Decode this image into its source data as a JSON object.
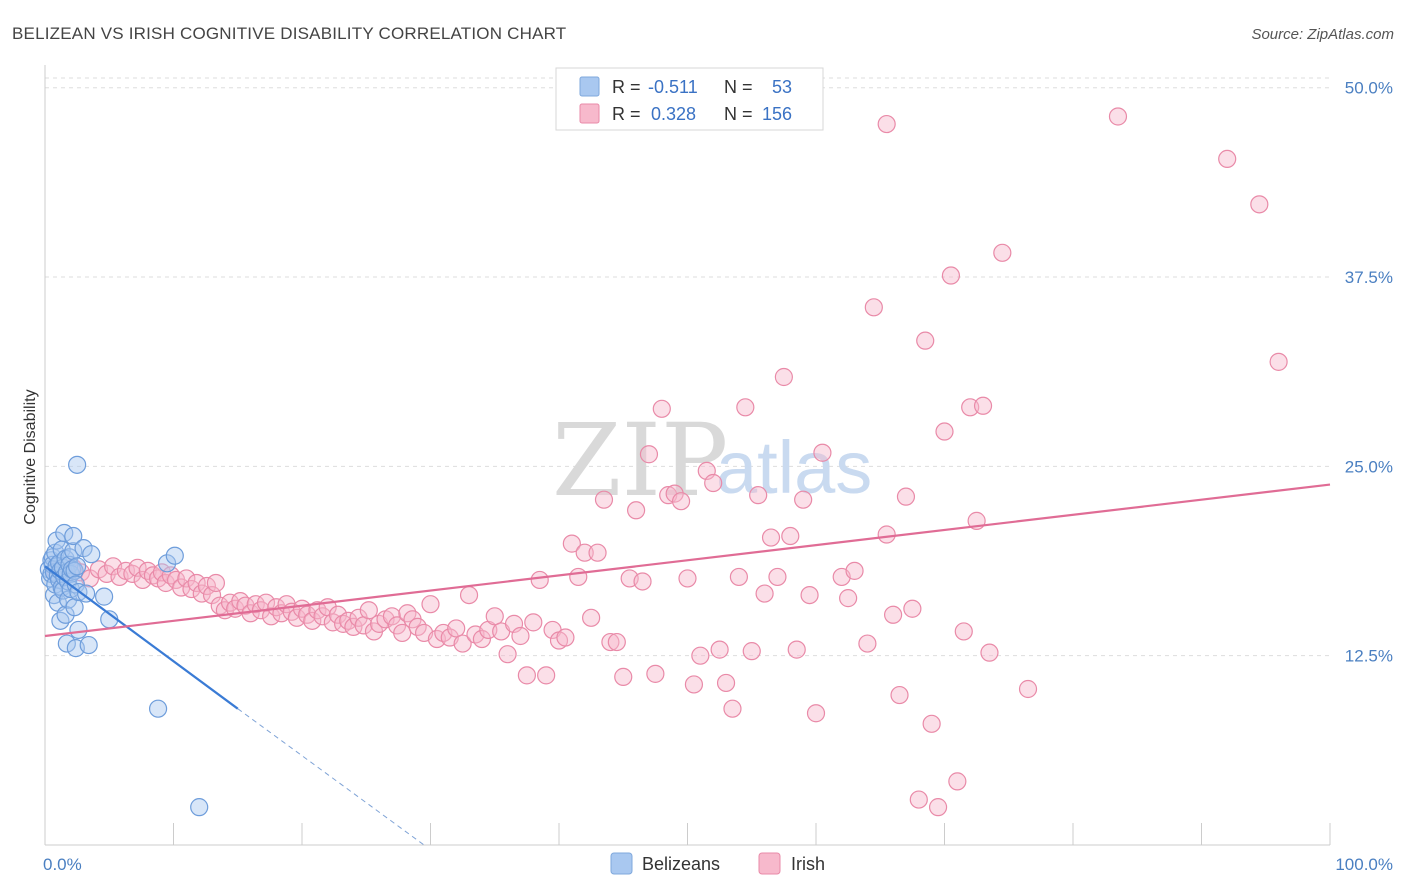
{
  "header": {
    "title": "BELIZEAN VS IRISH COGNITIVE DISABILITY CORRELATION CHART",
    "source": "Source: ZipAtlas.com"
  },
  "watermark": {
    "part1": "ZIP",
    "part2": "atlas"
  },
  "legend": {
    "rows": [
      {
        "r_label": "R =",
        "r_value": "-0.511",
        "n_label": "N =",
        "n_value": "53",
        "color": "#a9c8f0",
        "stroke": "#7fa8dc"
      },
      {
        "r_label": "R =",
        "r_value": "0.328",
        "n_label": "N =",
        "n_value": "156",
        "color": "#f7b9cc",
        "stroke": "#e98aa8"
      }
    ]
  },
  "bottom_legend": [
    {
      "label": "Belizeans",
      "color": "#a9c8f0",
      "stroke": "#7fa8dc"
    },
    {
      "label": "Irish",
      "color": "#f7b9cc",
      "stroke": "#e98aa8"
    }
  ],
  "chart_data": {
    "type": "scatter",
    "title": "BELIZEAN VS IRISH COGNITIVE DISABILITY CORRELATION CHART",
    "xlabel": "",
    "ylabel": "Cognitive Disability",
    "xlim": [
      0,
      100
    ],
    "ylim": [
      0,
      51.5
    ],
    "x_tick_labels": [
      {
        "value": 0,
        "label": "0.0%"
      },
      {
        "value": 100,
        "label": "100.0%"
      }
    ],
    "y_tick_labels": [
      {
        "value": 12.5,
        "label": "12.5%"
      },
      {
        "value": 25,
        "label": "25.0%"
      },
      {
        "value": 37.5,
        "label": "37.5%"
      },
      {
        "value": 50,
        "label": "50.0%"
      }
    ],
    "grid": true,
    "colors": {
      "blue": "#3a7bd5",
      "pink": "#e06c95",
      "blue_fill": "#a9c8f0",
      "pink_fill": "#f7b9cc"
    },
    "series": [
      {
        "name": "Belizeans",
        "color": "#a9c8f0",
        "points": [
          [
            0.3,
            18.2
          ],
          [
            0.4,
            17.6
          ],
          [
            0.5,
            18.8
          ],
          [
            0.5,
            17.9
          ],
          [
            0.6,
            19.0
          ],
          [
            0.6,
            18.5
          ],
          [
            0.7,
            16.5
          ],
          [
            0.7,
            18.0
          ],
          [
            0.8,
            19.3
          ],
          [
            0.8,
            17.2
          ],
          [
            0.9,
            18.4
          ],
          [
            0.9,
            20.1
          ],
          [
            1.0,
            17.8
          ],
          [
            1.0,
            16.0
          ],
          [
            1.1,
            18.6
          ],
          [
            1.1,
            17.5
          ],
          [
            1.2,
            14.8
          ],
          [
            1.2,
            18.1
          ],
          [
            1.3,
            17.0
          ],
          [
            1.3,
            19.5
          ],
          [
            1.4,
            18.3
          ],
          [
            1.4,
            16.8
          ],
          [
            1.5,
            20.6
          ],
          [
            1.5,
            17.7
          ],
          [
            1.6,
            18.9
          ],
          [
            1.6,
            15.2
          ],
          [
            1.7,
            13.3
          ],
          [
            1.7,
            18.0
          ],
          [
            1.8,
            17.4
          ],
          [
            1.8,
            16.2
          ],
          [
            1.9,
            19.0
          ],
          [
            1.9,
            18.5
          ],
          [
            2.0,
            17.9
          ],
          [
            2.0,
            16.9
          ],
          [
            2.1,
            18.2
          ],
          [
            2.2,
            19.4
          ],
          [
            2.2,
            20.4
          ],
          [
            2.3,
            15.7
          ],
          [
            2.3,
            18.1
          ],
          [
            2.4,
            17.2
          ],
          [
            2.4,
            13.0
          ],
          [
            2.5,
            25.1
          ],
          [
            2.5,
            18.4
          ],
          [
            2.6,
            16.7
          ],
          [
            2.6,
            14.2
          ],
          [
            3.0,
            19.6
          ],
          [
            3.2,
            16.6
          ],
          [
            3.4,
            13.2
          ],
          [
            3.6,
            19.2
          ],
          [
            4.6,
            16.4
          ],
          [
            5.0,
            14.9
          ],
          [
            8.8,
            9.0
          ],
          [
            9.5,
            18.6
          ],
          [
            10.1,
            19.1
          ],
          [
            12.0,
            2.5
          ]
        ]
      },
      {
        "name": "Irish",
        "color": "#f7b9cc",
        "points": [
          [
            0.8,
            18.1
          ],
          [
            1.5,
            17.8
          ],
          [
            2.2,
            18.3
          ],
          [
            2.8,
            18.0
          ],
          [
            3.5,
            17.6
          ],
          [
            4.2,
            18.2
          ],
          [
            4.8,
            17.9
          ],
          [
            5.3,
            18.4
          ],
          [
            5.8,
            17.7
          ],
          [
            6.3,
            18.1
          ],
          [
            6.8,
            17.9
          ],
          [
            7.2,
            18.3
          ],
          [
            7.6,
            17.5
          ],
          [
            8.0,
            18.1
          ],
          [
            8.4,
            17.8
          ],
          [
            8.8,
            17.6
          ],
          [
            9.1,
            18.0
          ],
          [
            9.4,
            17.3
          ],
          [
            9.8,
            17.8
          ],
          [
            10.2,
            17.5
          ],
          [
            10.6,
            17.0
          ],
          [
            11.0,
            17.6
          ],
          [
            11.4,
            16.9
          ],
          [
            11.8,
            17.3
          ],
          [
            12.2,
            16.6
          ],
          [
            12.6,
            17.1
          ],
          [
            13.0,
            16.5
          ],
          [
            13.3,
            17.3
          ],
          [
            13.6,
            15.8
          ],
          [
            14.0,
            15.5
          ],
          [
            14.4,
            16.0
          ],
          [
            14.8,
            15.6
          ],
          [
            15.2,
            16.1
          ],
          [
            15.6,
            15.8
          ],
          [
            16.0,
            15.3
          ],
          [
            16.4,
            15.9
          ],
          [
            16.8,
            15.5
          ],
          [
            17.2,
            16.0
          ],
          [
            17.6,
            15.1
          ],
          [
            18.0,
            15.7
          ],
          [
            18.4,
            15.3
          ],
          [
            18.8,
            15.9
          ],
          [
            19.2,
            15.4
          ],
          [
            19.6,
            15.0
          ],
          [
            20.0,
            15.6
          ],
          [
            20.4,
            15.2
          ],
          [
            20.8,
            14.8
          ],
          [
            21.2,
            15.5
          ],
          [
            21.6,
            15.1
          ],
          [
            22.0,
            15.7
          ],
          [
            22.4,
            14.7
          ],
          [
            22.8,
            15.2
          ],
          [
            23.2,
            14.6
          ],
          [
            23.6,
            14.8
          ],
          [
            24.0,
            14.4
          ],
          [
            24.4,
            15.0
          ],
          [
            24.8,
            14.5
          ],
          [
            25.2,
            15.5
          ],
          [
            25.6,
            14.1
          ],
          [
            26.0,
            14.6
          ],
          [
            26.5,
            14.9
          ],
          [
            27.0,
            15.1
          ],
          [
            27.4,
            14.5
          ],
          [
            27.8,
            14.0
          ],
          [
            28.2,
            15.3
          ],
          [
            28.6,
            14.9
          ],
          [
            29.0,
            14.4
          ],
          [
            29.5,
            14.0
          ],
          [
            30.0,
            15.9
          ],
          [
            30.5,
            13.6
          ],
          [
            31.0,
            14.0
          ],
          [
            31.5,
            13.7
          ],
          [
            32.0,
            14.3
          ],
          [
            32.5,
            13.3
          ],
          [
            33.0,
            16.5
          ],
          [
            33.5,
            13.9
          ],
          [
            34.0,
            13.6
          ],
          [
            34.5,
            14.2
          ],
          [
            35.0,
            15.1
          ],
          [
            35.5,
            14.1
          ],
          [
            36.0,
            12.6
          ],
          [
            36.5,
            14.6
          ],
          [
            37.0,
            13.8
          ],
          [
            37.5,
            11.2
          ],
          [
            38.0,
            14.7
          ],
          [
            38.5,
            17.5
          ],
          [
            39.0,
            11.2
          ],
          [
            39.5,
            14.2
          ],
          [
            40.0,
            13.5
          ],
          [
            40.5,
            13.7
          ],
          [
            41.0,
            19.9
          ],
          [
            41.5,
            17.7
          ],
          [
            42.0,
            19.3
          ],
          [
            42.5,
            15.0
          ],
          [
            43.0,
            19.3
          ],
          [
            43.5,
            22.8
          ],
          [
            44.0,
            13.4
          ],
          [
            44.5,
            13.4
          ],
          [
            45.0,
            11.1
          ],
          [
            45.5,
            17.6
          ],
          [
            46.0,
            22.1
          ],
          [
            46.5,
            17.4
          ],
          [
            47.0,
            25.8
          ],
          [
            47.5,
            11.3
          ],
          [
            48.0,
            28.8
          ],
          [
            48.5,
            23.1
          ],
          [
            49.0,
            23.2
          ],
          [
            49.5,
            22.7
          ],
          [
            50.0,
            17.6
          ],
          [
            50.5,
            10.6
          ],
          [
            51.0,
            12.5
          ],
          [
            51.5,
            24.7
          ],
          [
            52.0,
            23.9
          ],
          [
            52.5,
            12.9
          ],
          [
            53.0,
            10.7
          ],
          [
            53.5,
            9.0
          ],
          [
            54.0,
            17.7
          ],
          [
            54.5,
            28.9
          ],
          [
            55.0,
            12.8
          ],
          [
            55.5,
            23.1
          ],
          [
            56.0,
            16.6
          ],
          [
            56.5,
            20.3
          ],
          [
            57.0,
            17.7
          ],
          [
            57.5,
            30.9
          ],
          [
            58.0,
            20.4
          ],
          [
            58.5,
            12.9
          ],
          [
            59.0,
            22.8
          ],
          [
            59.5,
            16.5
          ],
          [
            60.0,
            8.7
          ],
          [
            60.5,
            25.9
          ],
          [
            62.0,
            17.7
          ],
          [
            62.5,
            16.3
          ],
          [
            63.0,
            18.1
          ],
          [
            64.0,
            13.3
          ],
          [
            64.5,
            35.5
          ],
          [
            65.5,
            20.5
          ],
          [
            66.0,
            15.2
          ],
          [
            66.5,
            9.9
          ],
          [
            67.0,
            23.0
          ],
          [
            67.5,
            15.6
          ],
          [
            68.0,
            3.0
          ],
          [
            68.5,
            33.3
          ],
          [
            69.0,
            8.0
          ],
          [
            69.5,
            2.5
          ],
          [
            70.0,
            27.3
          ],
          [
            70.5,
            37.6
          ],
          [
            71.0,
            4.2
          ],
          [
            71.5,
            14.1
          ],
          [
            72.0,
            28.9
          ],
          [
            72.5,
            21.4
          ],
          [
            73.0,
            29.0
          ],
          [
            73.5,
            12.7
          ],
          [
            74.5,
            39.1
          ],
          [
            76.5,
            10.3
          ],
          [
            83.5,
            48.1
          ],
          [
            92.0,
            45.3
          ],
          [
            94.5,
            42.3
          ],
          [
            96.0,
            31.9
          ],
          [
            65.5,
            47.6
          ]
        ]
      }
    ],
    "trend_lines": [
      {
        "series": "Belizeans",
        "x1": 0,
        "y1": 18.4,
        "x2": 15.0,
        "y2": 9.0,
        "dash_to_x": 29.5,
        "dash_to_y": 0
      },
      {
        "series": "Irish",
        "x1": 0,
        "y1": 13.8,
        "x2": 100,
        "y2": 23.8
      }
    ]
  }
}
